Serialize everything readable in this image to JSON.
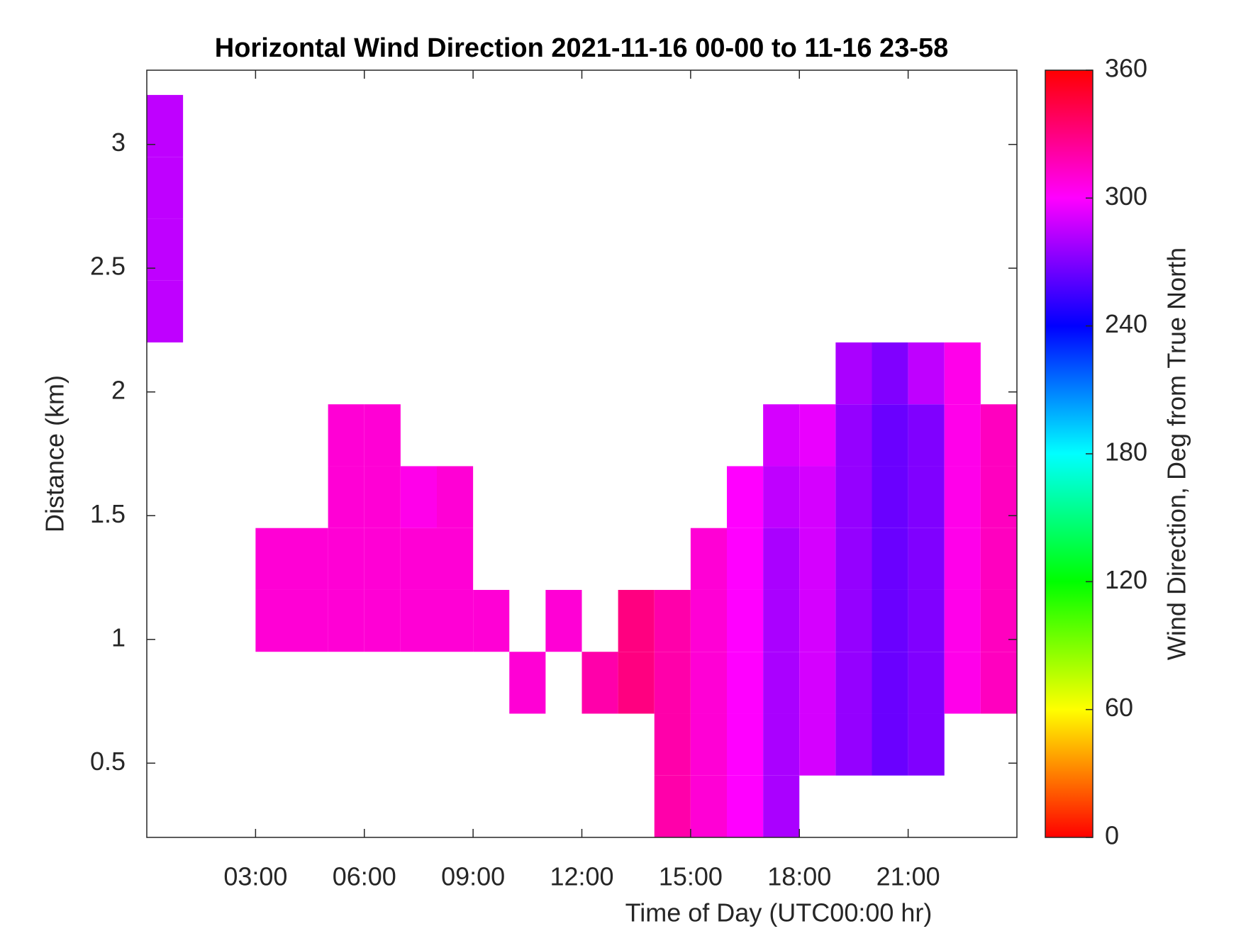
{
  "chart_data": {
    "type": "heatmap",
    "title": "Horizontal Wind Direction 2021-11-16 00-00 to 11-16 23-58",
    "x_label": "Time of Day (UTC00:00 hr)",
    "y_label": "Distance (km)",
    "colorbar_label": "Wind Direction, Deg from True North",
    "colormap": "hsv",
    "xbins": [
      0,
      1,
      2,
      3,
      4,
      5,
      6,
      7,
      8,
      9,
      10,
      11,
      12,
      13,
      14,
      15,
      16,
      17,
      18,
      19,
      20,
      21,
      22,
      23,
      24
    ],
    "ybins": [
      0.2,
      0.45,
      0.7,
      0.95,
      1.2,
      1.45,
      1.7,
      1.95,
      2.2,
      2.45,
      2.7,
      2.95,
      3.2
    ],
    "values": [
      [
        null,
        null,
        null,
        null,
        null,
        null,
        null,
        null,
        null,
        null,
        null,
        null,
        null,
        null,
        320,
        310,
        300,
        280,
        null,
        null,
        null,
        null,
        null,
        null
      ],
      [
        null,
        null,
        null,
        null,
        null,
        null,
        null,
        null,
        null,
        null,
        null,
        null,
        null,
        null,
        320,
        310,
        300,
        280,
        290,
        275,
        265,
        270,
        null,
        null
      ],
      [
        null,
        null,
        null,
        null,
        null,
        null,
        null,
        null,
        null,
        null,
        310,
        null,
        320,
        330,
        320,
        310,
        300,
        280,
        290,
        275,
        265,
        270,
        305,
        315
      ],
      [
        null,
        null,
        null,
        310,
        310,
        310,
        310,
        310,
        310,
        310,
        null,
        310,
        null,
        330,
        320,
        310,
        300,
        280,
        290,
        275,
        265,
        270,
        305,
        315
      ],
      [
        null,
        null,
        null,
        310,
        310,
        310,
        310,
        310,
        310,
        null,
        null,
        null,
        null,
        null,
        null,
        310,
        300,
        280,
        290,
        275,
        265,
        270,
        305,
        315
      ],
      [
        null,
        null,
        null,
        null,
        null,
        310,
        310,
        305,
        310,
        null,
        null,
        null,
        null,
        null,
        null,
        null,
        300,
        285,
        290,
        275,
        265,
        270,
        305,
        315
      ],
      [
        null,
        null,
        null,
        null,
        null,
        310,
        310,
        null,
        null,
        null,
        null,
        null,
        null,
        null,
        null,
        null,
        null,
        290,
        295,
        275,
        265,
        270,
        305,
        315
      ],
      [
        null,
        null,
        null,
        null,
        null,
        null,
        null,
        null,
        null,
        null,
        null,
        null,
        null,
        null,
        null,
        null,
        null,
        null,
        null,
        280,
        270,
        285,
        305,
        null
      ],
      [
        285,
        null,
        null,
        null,
        null,
        null,
        null,
        null,
        null,
        null,
        null,
        null,
        null,
        null,
        null,
        null,
        null,
        null,
        null,
        null,
        null,
        null,
        null,
        null
      ],
      [
        285,
        null,
        null,
        null,
        null,
        null,
        null,
        null,
        null,
        null,
        null,
        null,
        null,
        null,
        null,
        null,
        null,
        null,
        null,
        null,
        null,
        null,
        null,
        null
      ],
      [
        285,
        null,
        null,
        null,
        null,
        null,
        null,
        null,
        null,
        null,
        null,
        null,
        null,
        null,
        null,
        null,
        null,
        null,
        null,
        null,
        null,
        null,
        null,
        null
      ],
      [
        285,
        null,
        null,
        null,
        null,
        null,
        null,
        null,
        null,
        null,
        null,
        null,
        null,
        null,
        null,
        null,
        null,
        null,
        null,
        null,
        null,
        null,
        null,
        null
      ]
    ],
    "xlim": [
      0,
      24
    ],
    "xticks": [
      {
        "value": 3,
        "label": "03:00"
      },
      {
        "value": 6,
        "label": "06:00"
      },
      {
        "value": 9,
        "label": "09:00"
      },
      {
        "value": 12,
        "label": "12:00"
      },
      {
        "value": 15,
        "label": "15:00"
      },
      {
        "value": 18,
        "label": "18:00"
      },
      {
        "value": 21,
        "label": "21:00"
      }
    ],
    "ylim": [
      0.2,
      3.3
    ],
    "yticks": [
      0.5,
      1,
      1.5,
      2,
      2.5,
      3
    ],
    "clim": [
      0,
      360
    ],
    "cticks": [
      0,
      60,
      120,
      180,
      240,
      300,
      360
    ]
  }
}
